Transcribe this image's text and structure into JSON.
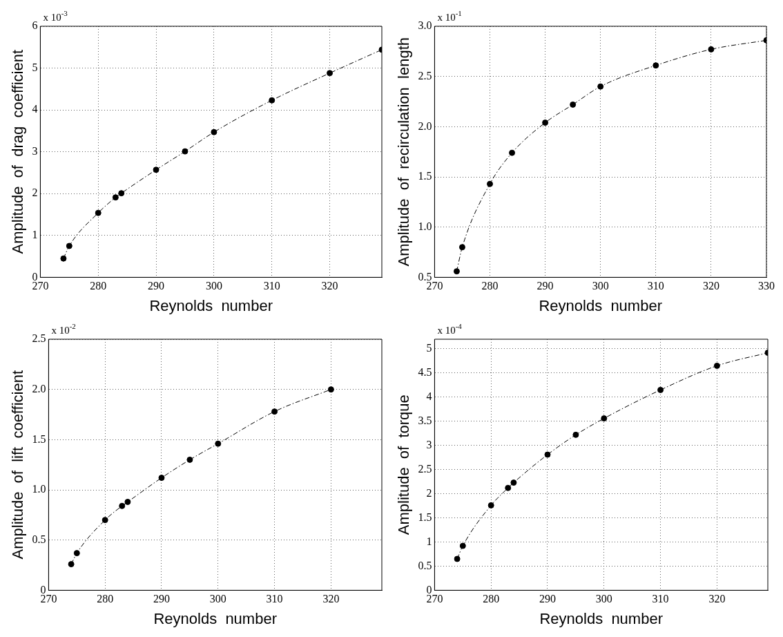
{
  "chart_data": [
    {
      "type": "line",
      "xlabel": "Reynolds  number",
      "ylabel": "Amplitude  of  drag  coefficient",
      "annotations": [
        "x 10$^{-3}$"
      ],
      "x": [
        274,
        275,
        280,
        283,
        284,
        290,
        295,
        300,
        310,
        320,
        329
      ],
      "series": [
        {
          "color": "#000000",
          "values": [
            0.45,
            0.75,
            1.54,
            1.91,
            2.01,
            2.57,
            3.01,
            3.47,
            4.23,
            4.88,
            5.44
          ]
        }
      ],
      "xlim": [
        270,
        329
      ],
      "xticks": [
        270,
        280,
        290,
        300,
        310,
        320
      ],
      "ylim": [
        0,
        6
      ],
      "yticks": [
        0,
        1,
        2,
        3,
        4,
        5,
        6
      ],
      "grid": true,
      "marker": "circle",
      "line_style": "dashed"
    },
    {
      "type": "line",
      "xlabel": "Reynolds  number",
      "ylabel": "Amplitude  of  recirculation  length",
      "annotations": [
        "x 10$^{-1}$"
      ],
      "x": [
        274,
        275,
        280,
        284,
        290,
        295,
        300,
        310,
        320,
        330
      ],
      "series": [
        {
          "color": "#000000",
          "values": [
            0.56,
            0.8,
            1.43,
            1.74,
            2.04,
            2.22,
            2.4,
            2.61,
            2.77,
            2.86
          ]
        }
      ],
      "xlim": [
        270,
        330
      ],
      "xticks": [
        270,
        280,
        290,
        300,
        310,
        320,
        330
      ],
      "ylim": [
        0.5,
        3.0
      ],
      "yticks": [
        0.5,
        {
          "value": 1,
          "label": "1.0"
        },
        1.5,
        {
          "value": 2,
          "label": "2.0"
        },
        2.5,
        {
          "value": 3,
          "label": "3.0"
        }
      ],
      "grid": true,
      "marker": "circle",
      "line_style": "dashed"
    },
    {
      "type": "line",
      "xlabel": "Reynolds  number",
      "ylabel": "Amplitude  of  lift  coefficient",
      "annotations": [
        "x 10$^{-2}$"
      ],
      "x": [
        274,
        275,
        280,
        283,
        284,
        290,
        295,
        300,
        310,
        320
      ],
      "series": [
        {
          "color": "#000000",
          "values": [
            0.26,
            0.37,
            0.7,
            0.84,
            0.88,
            1.12,
            1.3,
            1.46,
            1.78,
            2.0
          ]
        }
      ],
      "xlim": [
        270,
        329
      ],
      "xticks": [
        270,
        280,
        290,
        300,
        310,
        320
      ],
      "ylim": [
        0,
        2.5
      ],
      "yticks": [
        0,
        0.5,
        {
          "value": 1,
          "label": "1.0"
        },
        1.5,
        {
          "value": 2,
          "label": "2.0"
        },
        2.5
      ],
      "grid": true,
      "marker": "circle",
      "line_style": "dashed"
    },
    {
      "type": "line",
      "xlabel": "Reynolds  number",
      "ylabel": "Amplitude  of  torque",
      "annotations": [
        "x 10$^{-4}$"
      ],
      "x": [
        274,
        275,
        280,
        283,
        284,
        290,
        295,
        300,
        310,
        320,
        329
      ],
      "series": [
        {
          "color": "#000000",
          "values": [
            0.65,
            0.92,
            1.76,
            2.12,
            2.23,
            2.81,
            3.22,
            3.56,
            4.15,
            4.65,
            4.92
          ]
        }
      ],
      "xlim": [
        270,
        329
      ],
      "xticks": [
        270,
        280,
        290,
        300,
        310,
        320
      ],
      "ylim": [
        0,
        5.2
      ],
      "yticks": [
        0,
        0.5,
        1,
        1.5,
        2,
        2.5,
        3,
        3.5,
        4,
        4.5,
        5
      ],
      "grid": true,
      "marker": "circle",
      "line_style": "dashed"
    }
  ]
}
